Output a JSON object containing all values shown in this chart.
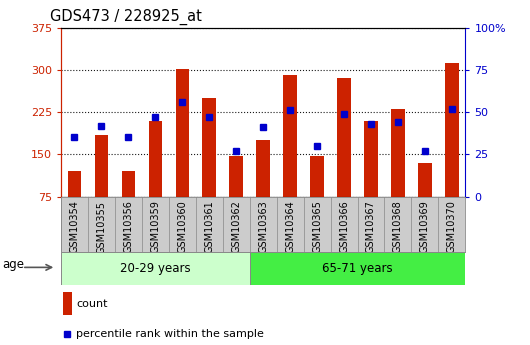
{
  "title": "GDS473 / 228925_at",
  "samples": [
    "GSM10354",
    "GSM10355",
    "GSM10356",
    "GSM10359",
    "GSM10360",
    "GSM10361",
    "GSM10362",
    "GSM10363",
    "GSM10364",
    "GSM10365",
    "GSM10366",
    "GSM10367",
    "GSM10368",
    "GSM10369",
    "GSM10370"
  ],
  "counts": [
    120,
    185,
    120,
    210,
    301,
    250,
    148,
    175,
    290,
    148,
    285,
    210,
    230,
    135,
    312
  ],
  "pct_ranks": [
    35,
    42,
    35,
    47,
    56,
    47,
    27,
    41,
    51,
    30,
    49,
    43,
    44,
    27,
    52
  ],
  "group1_label": "20-29 years",
  "group1_n": 7,
  "group2_label": "65-71 years",
  "group2_n": 8,
  "age_label": "age",
  "left_ylim": [
    75,
    375
  ],
  "right_ylim": [
    0,
    100
  ],
  "left_yticks": [
    75,
    150,
    225,
    300,
    375
  ],
  "right_yticks": [
    0,
    25,
    50,
    75,
    100
  ],
  "bar_color": "#cc2200",
  "dot_color": "#0000cc",
  "group1_color": "#ccffcc",
  "group2_color": "#44ee44",
  "tick_bg_color": "#cccccc",
  "border_color": "#888888",
  "legend_count": "count",
  "legend_pct": "percentile rank within the sample",
  "bar_width": 0.5
}
